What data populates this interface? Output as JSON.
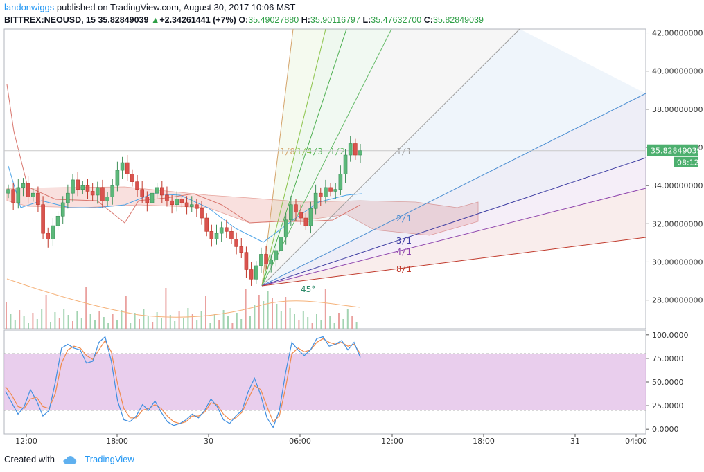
{
  "header": {
    "author": "landonwiggs",
    "published_text": " published on TradingView.com, August 30, 2017 10:06 MST",
    "symbol": "BITTREX:NEOUSD, 15",
    "last": "35.82849039",
    "change": "+2.34261441 (+7%)",
    "o_label": "O:",
    "o_value": "35.49027880",
    "h_label": "H:",
    "h_value": "35.90116797",
    "l_label": "L:",
    "l_value": "35.47632700",
    "c_label": "C:",
    "c_value": "35.82849039"
  },
  "footer": {
    "created_with": "Created with",
    "brand": "TradingView"
  },
  "colors": {
    "up": "#3d8f58",
    "down": "#c0392b",
    "accent": "#2196f3",
    "price_label_bg": "#4caf6e",
    "stoch_band": "#e1bee7",
    "cloud_fill": "#f4c7c3",
    "ma_line": "#f5b27a"
  },
  "chart_data": [
    {
      "type": "candlestick",
      "ylim": [
        26.5,
        42.2
      ],
      "y_ticks": [
        "42.00000000",
        "40.00000000",
        "38.00000000",
        "36.00000000",
        "34.00000000",
        "32.00000000",
        "30.00000000",
        "28.00000000"
      ],
      "y_tick_values": [
        42,
        40,
        38,
        36,
        34,
        32,
        30,
        28
      ],
      "x_ticks": [
        "12:00",
        "18:00",
        "30",
        "06:00",
        "12:00",
        "18:00",
        "31",
        "04:00"
      ],
      "current_price_label": "35.82849039",
      "countdown_label": "08:12",
      "closes": [
        33.8,
        33.1,
        33.9,
        34.1,
        33.4,
        33.6,
        33.0,
        31.5,
        31.2,
        31.9,
        32.4,
        33.1,
        33.6,
        34.3,
        33.8,
        34.0,
        33.7,
        33.5,
        33.9,
        33.2,
        33.4,
        34.0,
        34.8,
        35.2,
        34.6,
        34.2,
        33.8,
        33.4,
        33.1,
        33.6,
        33.9,
        33.5,
        33.2,
        33.0,
        33.3,
        33.1,
        32.9,
        33.0,
        32.8,
        32.3,
        31.6,
        31.2,
        31.5,
        31.8,
        31.6,
        31.2,
        30.8,
        30.5,
        29.6,
        29.1,
        29.8,
        30.4,
        29.9,
        30.1,
        30.6,
        31.3,
        32.2,
        33.0,
        32.6,
        32.3,
        31.9,
        32.8,
        33.6,
        33.4,
        33.9,
        33.7,
        33.8,
        34.6,
        35.6,
        36.2,
        35.6,
        35.83
      ],
      "gann_fan": {
        "lines": [
          "1/8",
          "1/4",
          "1/3",
          "1/2",
          "1/1",
          "2/1",
          "3/1",
          "4/1",
          "8/1"
        ],
        "angle_label": "45°",
        "line_colors": [
          "#d4a36a",
          "#8bc34a",
          "#4caf50",
          "#66bb6a",
          "#9e9e9e",
          "#4b8ed2",
          "#3f3ea3",
          "#8e44ad",
          "#c0392b"
        ]
      },
      "indicators": [
        "ichimoku cloud",
        "moving average",
        "volume"
      ]
    },
    {
      "type": "line",
      "name": "stochastic",
      "ylim": [
        -5,
        105
      ],
      "y_ticks": [
        "100.0000",
        "75.0000",
        "50.0000",
        "25.0000",
        "0.0000"
      ],
      "y_tick_values": [
        100,
        75,
        50,
        25,
        0
      ],
      "band": [
        20,
        80
      ],
      "k": [
        40,
        28,
        16,
        24,
        42,
        30,
        14,
        20,
        50,
        86,
        90,
        86,
        84,
        70,
        72,
        92,
        98,
        72,
        30,
        10,
        8,
        14,
        26,
        20,
        30,
        18,
        8,
        4,
        6,
        10,
        16,
        12,
        20,
        32,
        24,
        10,
        6,
        14,
        20,
        40,
        54,
        36,
        12,
        2,
        20,
        60,
        92,
        84,
        78,
        84,
        96,
        98,
        88,
        90,
        94,
        84,
        92,
        76
      ],
      "d": [
        45,
        36,
        24,
        22,
        32,
        34,
        24,
        22,
        38,
        70,
        84,
        88,
        86,
        78,
        74,
        84,
        94,
        82,
        48,
        22,
        12,
        12,
        20,
        22,
        26,
        22,
        14,
        8,
        6,
        8,
        14,
        14,
        18,
        28,
        26,
        16,
        10,
        12,
        18,
        32,
        46,
        42,
        24,
        8,
        14,
        44,
        80,
        86,
        82,
        84,
        92,
        96,
        92,
        90,
        92,
        88,
        90,
        80
      ]
    }
  ]
}
